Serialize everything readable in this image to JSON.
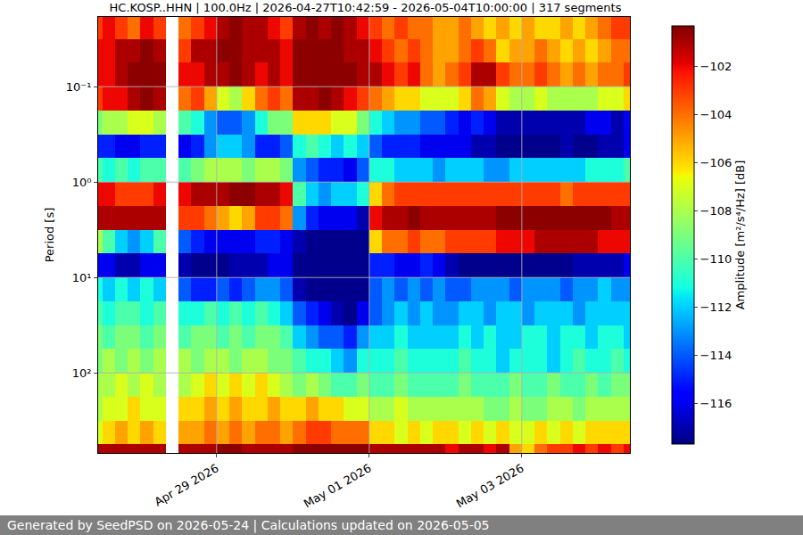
{
  "chart_data": {
    "type": "heatmap",
    "title": "HC.KOSP..HHN | 100.0Hz | 2026-04-27T10:42:59 - 2026-05-04T10:00:00 | 317 segments",
    "ylabel": "Period [s]",
    "colorbar_label": "Amplitude [m²/s⁴/Hz] [dB]",
    "footer": "Generated by SeedPSD on 2026-05-24 | Calculations updated on 2026-05-05",
    "log": "y",
    "grid": true,
    "xlim": [
      "2026-04-27T10:42:59",
      "2026-05-04T10:00:00"
    ],
    "xticks": [
      {
        "value": "2026-04-29",
        "label": "Apr 29 2026"
      },
      {
        "value": "2026-05-01",
        "label": "May 01 2026"
      },
      {
        "value": "2026-05-03",
        "label": "May 03 2026"
      }
    ],
    "ylim": [
      690,
      0.0186
    ],
    "yticks": [
      {
        "value": 0.1,
        "label": "10⁻¹"
      },
      {
        "value": 1,
        "label": "10⁰"
      },
      {
        "value": 10,
        "label": "10¹"
      },
      {
        "value": 100,
        "label": "10²"
      }
    ],
    "zlim": [
      -117.7,
      -100.3
    ],
    "zticks": [
      {
        "value": -102,
        "label": "−102"
      },
      {
        "value": -104,
        "label": "−104"
      },
      {
        "value": -106,
        "label": "−106"
      },
      {
        "value": -108,
        "label": "−108"
      },
      {
        "value": -110,
        "label": "−110"
      },
      {
        "value": -112,
        "label": "−112"
      },
      {
        "value": -114,
        "label": "−114"
      },
      {
        "value": -116,
        "label": "−116"
      }
    ],
    "x_edges": [
      "2026-04-27T10:42:59",
      "2026-04-27T12:00:00",
      "2026-04-27T16:00:00",
      "2026-04-27T20:00:00",
      "2026-04-28T00:00:00",
      "2026-04-28T04:00:00",
      "2026-04-28T08:00:00",
      "2026-04-28T12:00:00",
      "2026-04-28T16:00:00",
      "2026-04-28T20:00:00",
      "2026-04-29T00:00:00",
      "2026-04-29T04:00:00",
      "2026-04-29T08:00:00",
      "2026-04-29T12:00:00",
      "2026-04-29T16:00:00",
      "2026-04-29T20:00:00",
      "2026-04-30T00:00:00",
      "2026-04-30T04:00:00",
      "2026-04-30T08:00:00",
      "2026-04-30T12:00:00",
      "2026-04-30T16:00:00",
      "2026-04-30T20:00:00",
      "2026-05-01T00:00:00",
      "2026-05-01T04:00:00",
      "2026-05-01T08:00:00",
      "2026-05-01T12:00:00",
      "2026-05-01T16:00:00",
      "2026-05-01T20:00:00",
      "2026-05-02T00:00:00",
      "2026-05-02T04:00:00",
      "2026-05-02T08:00:00",
      "2026-05-02T12:00:00",
      "2026-05-02T16:00:00",
      "2026-05-02T20:00:00",
      "2026-05-03T00:00:00",
      "2026-05-03T04:00:00",
      "2026-05-03T08:00:00",
      "2026-05-03T12:00:00",
      "2026-05-03T16:00:00",
      "2026-05-03T20:00:00",
      "2026-05-04T00:00:00",
      "2026-05-04T04:00:00",
      "2026-05-04T08:00:00",
      "2026-05-04T10:00:00"
    ],
    "y_edges": [
      0.0186,
      0.0316,
      0.0562,
      0.1,
      0.178,
      0.316,
      0.562,
      1,
      1.78,
      3.16,
      5.62,
      10,
      17.8,
      31.6,
      56.2,
      100,
      178,
      316,
      562,
      690
    ],
    "z": [
      [
        -103,
        -102,
        -103,
        -104,
        -102,
        -103,
        null,
        -104,
        -103,
        -102,
        -101,
        -100.5,
        -101,
        -101,
        -102,
        -103,
        -101,
        -100.5,
        -101,
        -100.5,
        -101,
        -102,
        -103,
        -104,
        -103,
        -104,
        -104,
        -105,
        -105,
        -104,
        -105,
        -106,
        -105,
        -106,
        -105,
        -106,
        -106,
        -105,
        -106,
        -105,
        -104,
        -103,
        -103
      ],
      [
        -102,
        -102,
        -101,
        -101,
        -100.5,
        -101,
        null,
        -103,
        -101,
        -101,
        -100.5,
        -100.5,
        -101,
        -101,
        -101,
        -102,
        -100.5,
        -100.5,
        -100.5,
        -100.5,
        -101,
        -101,
        -102,
        -103,
        -104,
        -103,
        -104,
        -105,
        -105,
        -104,
        -103,
        -104,
        -106,
        -105,
        -105,
        -104,
        -105,
        -106,
        -105,
        -106,
        -105,
        -104,
        -104
      ],
      [
        -102,
        -102,
        -101,
        -100.5,
        -100.5,
        -100.5,
        null,
        -102,
        -102,
        -101,
        -101,
        -100.5,
        -101,
        -102,
        -101,
        -102,
        -100.5,
        -100.5,
        -100.5,
        -100.5,
        -100.5,
        -101,
        -101,
        -102,
        -103,
        -102,
        -104,
        -105,
        -104,
        -103,
        -101,
        -101,
        -103,
        -104,
        -104,
        -103,
        -104,
        -105,
        -104,
        -105,
        -104,
        -104,
        -103
      ],
      [
        -103,
        -102,
        -102,
        -101,
        -100.5,
        -101,
        null,
        -104,
        -103,
        -105,
        -107,
        -108,
        -106,
        -104,
        -103,
        -104,
        -101,
        -101,
        -100.5,
        -101,
        -102,
        -103,
        -104,
        -105,
        -106,
        -106,
        -107,
        -107,
        -107,
        -106,
        -104,
        -105,
        -107,
        -108,
        -108,
        -107,
        -108,
        -108,
        -108,
        -108,
        -107,
        -107,
        -106
      ],
      [
        -109,
        -108,
        -108,
        -107,
        -107,
        -108,
        null,
        -110,
        -111,
        -113,
        -114,
        -114,
        -113,
        -111,
        -109,
        -109,
        -106,
        -106,
        -106,
        -107,
        -107,
        -109,
        -111,
        -112,
        -113,
        -113,
        -114,
        -114,
        -115,
        -116,
        -115,
        -116,
        -117,
        -117,
        -117,
        -117,
        -117,
        -117,
        -117,
        -116,
        -116,
        -117,
        -116
      ],
      [
        -115,
        -115,
        -116,
        -116,
        -115,
        -115,
        null,
        -116,
        -115,
        -113,
        -112,
        -112,
        -113,
        -115,
        -115,
        -114,
        -111,
        -110,
        -111,
        -112,
        -111,
        -112,
        -114,
        -115,
        -115,
        -115,
        -116,
        -116,
        -116,
        -116,
        -117,
        -117,
        -117.5,
        -117.5,
        -117.5,
        -117.5,
        -117.5,
        -117,
        -117.5,
        -117.5,
        -117,
        -117,
        -116
      ],
      [
        -110,
        -111,
        -110,
        -111,
        -110,
        -110,
        null,
        -110,
        -109,
        -108,
        -108,
        -108,
        -109,
        -108,
        -108,
        -109,
        -113,
        -114,
        -115,
        -115,
        -116,
        -114,
        -111,
        -111,
        -112,
        -112,
        -112,
        -113,
        -112,
        -112,
        -112,
        -113,
        -113,
        -112,
        -112,
        -112,
        -112,
        -112,
        -112,
        -111,
        -111,
        -111,
        -110
      ],
      [
        -102,
        -102,
        -103,
        -103,
        -103,
        -102,
        null,
        -102,
        -101,
        -101,
        -101,
        -100.5,
        -100.5,
        -101,
        -101,
        -102,
        -110,
        -112,
        -113,
        -112,
        -112,
        -111,
        -106,
        -104,
        -103,
        -103,
        -103,
        -103,
        -103,
        -103,
        -103,
        -103,
        -103,
        -103,
        -103,
        -103,
        -103,
        -104,
        -103,
        -103,
        -103,
        -103,
        -103
      ],
      [
        -101,
        -101,
        -101,
        -101,
        -101,
        -101,
        null,
        -103,
        -103,
        -104,
        -105,
        -106,
        -105,
        -103,
        -103,
        -104,
        -113,
        -115,
        -116,
        -116,
        -116,
        -117,
        -102,
        -101,
        -101,
        -100.5,
        -101,
        -101,
        -101,
        -101,
        -101,
        -101,
        -100.5,
        -100.5,
        -100.5,
        -100.5,
        -100.5,
        -100.5,
        -100.5,
        -100.5,
        -100.5,
        -101,
        -101
      ],
      [
        -108,
        -110,
        -112,
        -113,
        -112,
        -110,
        null,
        -114,
        -115,
        -116,
        -116,
        -116,
        -116,
        -115,
        -115,
        -116,
        -117,
        -117.5,
        -117.5,
        -117.5,
        -117.5,
        -117.5,
        -106,
        -104,
        -104,
        -103,
        -104,
        -104,
        -103,
        -103,
        -103,
        -103,
        -102,
        -102,
        -102,
        -101,
        -101,
        -101,
        -101,
        -101,
        -102,
        -102,
        -102
      ],
      [
        -116,
        -116,
        -117,
        -117,
        -116,
        -116,
        null,
        -117,
        -117.5,
        -117.5,
        -117.5,
        -117,
        -117,
        -117,
        -116,
        -116,
        -117.5,
        -117.5,
        -117.5,
        -117.5,
        -117.5,
        -117.5,
        -115,
        -115,
        -116,
        -116,
        -115,
        -116,
        -117,
        -117.5,
        -117.5,
        -117.5,
        -117.5,
        -117.5,
        -117.5,
        -117.5,
        -117.5,
        -117.5,
        -117,
        -117,
        -117,
        -117,
        -116
      ],
      [
        -111,
        -112,
        -111,
        -112,
        -111,
        -112,
        null,
        -114,
        -115,
        -115,
        -114,
        -115,
        -114,
        -113,
        -113,
        -114,
        -117,
        -117.5,
        -117.5,
        -117.5,
        -117.5,
        -117.5,
        -114,
        -113,
        -114,
        -113,
        -114,
        -113,
        -114,
        -114,
        -113,
        -113,
        -113,
        -114,
        -113,
        -113,
        -113,
        -114,
        -113,
        -113,
        -112,
        -113,
        -113
      ],
      [
        -110,
        -111,
        -110,
        -110,
        -111,
        -110,
        null,
        -111,
        -111,
        -110,
        -111,
        -110,
        -111,
        -110,
        -111,
        -112,
        -114,
        -115,
        -116,
        -117,
        -117.5,
        -116,
        -114,
        -113,
        -112,
        -113,
        -112,
        -113,
        -113,
        -112,
        -112,
        -113,
        -112,
        -112,
        -113,
        -112,
        -112,
        -112,
        -113,
        -112,
        -112,
        -112,
        -112
      ],
      [
        -109,
        -110,
        -109,
        -109,
        -110,
        -109,
        null,
        -110,
        -109,
        -109,
        -110,
        -109,
        -110,
        -109,
        -109,
        -110,
        -112,
        -113,
        -114,
        -114,
        -115,
        -113,
        -112,
        -112,
        -111,
        -112,
        -112,
        -112,
        -112,
        -111,
        -112,
        -111,
        -112,
        -112,
        -111,
        -111,
        -112,
        -111,
        -111,
        -112,
        -111,
        -111,
        -112
      ],
      [
        -109,
        -108,
        -109,
        -108,
        -109,
        -108,
        null,
        -108,
        -109,
        -108,
        -108,
        -109,
        -108,
        -108,
        -109,
        -109,
        -110,
        -111,
        -111,
        -112,
        -113,
        -111,
        -111,
        -111,
        -110,
        -111,
        -111,
        -111,
        -111,
        -110,
        -111,
        -111,
        -112,
        -111,
        -111,
        -111,
        -112,
        -111,
        -110,
        -111,
        -111,
        -110,
        -111
      ],
      [
        -108,
        -108,
        -107,
        -108,
        -107,
        -108,
        null,
        -108,
        -107,
        -106,
        -107,
        -106,
        -107,
        -106,
        -107,
        -108,
        -109,
        -108,
        -109,
        -110,
        -110,
        -109,
        -110,
        -110,
        -109,
        -110,
        -110,
        -110,
        -110,
        -109,
        -110,
        -110,
        -110,
        -109,
        -110,
        -110,
        -109,
        -110,
        -110,
        -109,
        -110,
        -109,
        -109
      ],
      [
        -108,
        -107,
        -107,
        -106,
        -107,
        -107,
        null,
        -106,
        -106,
        -105,
        -106,
        -105,
        -106,
        -106,
        -105,
        -106,
        -106,
        -105,
        -106,
        -106,
        -107,
        -107,
        -108,
        -108,
        -107,
        -108,
        -108,
        -108,
        -108,
        -108,
        -108,
        -109,
        -109,
        -108,
        -109,
        -109,
        -108,
        -108,
        -109,
        -108,
        -108,
        -108,
        -108
      ],
      [
        -107,
        -106,
        -105,
        -106,
        -105,
        -106,
        null,
        -105,
        -105,
        -104,
        -105,
        -104,
        -105,
        -104,
        -104,
        -105,
        -104,
        -103,
        -103,
        -104,
        -104,
        -104,
        -106,
        -106,
        -107,
        -106,
        -107,
        -106,
        -106,
        -107,
        -106,
        -107,
        -106,
        -107,
        -107,
        -106,
        -107,
        -106,
        -107,
        -106,
        -106,
        -106,
        -106
      ],
      [
        -101,
        -101,
        -101,
        -101,
        -101,
        -101,
        null,
        -101,
        -101,
        -101,
        -100.5,
        -100.5,
        -101,
        -101,
        -101,
        -101,
        -100.5,
        -100.5,
        -100.5,
        -100.5,
        -100.5,
        -100.5,
        -101,
        -101,
        -101,
        -101,
        -101,
        -101,
        -102,
        -101,
        -101,
        -102,
        -101,
        -105,
        -106,
        -104,
        -103,
        -103,
        -102,
        -103,
        -102,
        -103,
        -102
      ]
    ]
  }
}
